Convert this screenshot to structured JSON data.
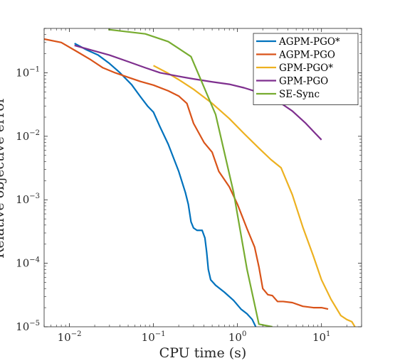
{
  "chart_data": {
    "type": "line",
    "xlabel": "CPU time (s)",
    "ylabel": "Relative objective error",
    "xscale": "log",
    "yscale": "log",
    "xlim": [
      0.005,
      30
    ],
    "ylim": [
      1e-05,
      0.5
    ],
    "xticks": [
      {
        "base": "10",
        "exp": "−2",
        "value": 0.01
      },
      {
        "base": "10",
        "exp": "−1",
        "value": 0.1
      },
      {
        "base": "10",
        "exp": "0",
        "value": 1
      },
      {
        "base": "10",
        "exp": "1",
        "value": 10
      }
    ],
    "yticks": [
      {
        "base": "10",
        "exp": "−5",
        "value": 1e-05
      },
      {
        "base": "10",
        "exp": "−4",
        "value": 0.0001
      },
      {
        "base": "10",
        "exp": "−3",
        "value": 0.001
      },
      {
        "base": "10",
        "exp": "−2",
        "value": 0.01
      },
      {
        "base": "10",
        "exp": "−1",
        "value": 0.1
      }
    ],
    "grid": false,
    "legend_position": "top-right",
    "series": [
      {
        "name": "AGPM-PGO*",
        "color": "#0072BD",
        "x": [
          0.0115,
          0.016,
          0.022,
          0.03,
          0.04,
          0.055,
          0.07,
          0.085,
          0.1,
          0.12,
          0.15,
          0.2,
          0.24,
          0.26,
          0.28,
          0.3,
          0.33,
          0.38,
          0.41,
          0.43,
          0.45,
          0.48,
          0.55,
          0.7,
          0.9,
          1.1,
          1.3,
          1.5,
          1.65
        ],
        "y": [
          0.29,
          0.23,
          0.19,
          0.14,
          0.1,
          0.065,
          0.042,
          0.03,
          0.024,
          0.014,
          0.0075,
          0.0028,
          0.0013,
          0.00085,
          0.00045,
          0.00036,
          0.00033,
          0.00033,
          0.00025,
          0.00015,
          8e-05,
          5.5e-05,
          4.5e-05,
          3.5e-05,
          2.6e-05,
          1.9e-05,
          1.6e-05,
          1.3e-05,
          1e-05
        ]
      },
      {
        "name": "AGPM-PGO",
        "color": "#D95319",
        "x": [
          0.005,
          0.008,
          0.012,
          0.018,
          0.025,
          0.035,
          0.05,
          0.07,
          0.1,
          0.15,
          0.2,
          0.25,
          0.3,
          0.4,
          0.5,
          0.6,
          0.8,
          1.0,
          1.3,
          1.6,
          1.8,
          2.0,
          2.3,
          2.6,
          3.0,
          3.5,
          4.5,
          6.0,
          8.0,
          10.0,
          12.0
        ],
        "y": [
          0.34,
          0.3,
          0.22,
          0.16,
          0.12,
          0.1,
          0.085,
          0.073,
          0.064,
          0.052,
          0.043,
          0.033,
          0.016,
          0.008,
          0.0056,
          0.0028,
          0.0016,
          0.00085,
          0.00035,
          0.00018,
          8.8e-05,
          4e-05,
          3.2e-05,
          3.1e-05,
          2.5e-05,
          2.5e-05,
          2.4e-05,
          2.1e-05,
          2e-05,
          2e-05,
          1.9e-05
        ]
      },
      {
        "name": "GPM-PGO*",
        "color": "#EDB120",
        "x": [
          0.1,
          0.15,
          0.2,
          0.3,
          0.5,
          0.8,
          1.2,
          1.8,
          2.5,
          3.3,
          4.5,
          6.0,
          8.0,
          10.0,
          13.0,
          17.0,
          20.0,
          23.0,
          25.0
        ],
        "y": [
          0.13,
          0.098,
          0.078,
          0.055,
          0.033,
          0.019,
          0.011,
          0.0065,
          0.0043,
          0.0032,
          0.0012,
          0.00037,
          0.00013,
          5.5e-05,
          2.7e-05,
          1.5e-05,
          1.3e-05,
          1.2e-05,
          1e-05
        ]
      },
      {
        "name": "GPM-PGO",
        "color": "#7E2F8E",
        "x": [
          0.0115,
          0.02,
          0.03,
          0.05,
          0.08,
          0.12,
          0.2,
          0.3,
          0.5,
          0.8,
          1.2,
          2.0,
          3.0,
          4.5,
          6.5,
          8.5,
          10.0
        ],
        "y": [
          0.27,
          0.22,
          0.19,
          0.15,
          0.12,
          0.1,
          0.088,
          0.08,
          0.072,
          0.066,
          0.058,
          0.047,
          0.036,
          0.025,
          0.016,
          0.011,
          0.0088
        ]
      },
      {
        "name": "SE-Sync",
        "color": "#77AC30",
        "x": [
          0.029,
          0.08,
          0.15,
          0.28,
          0.55,
          0.9,
          1.3,
          1.8,
          2.6
        ],
        "y": [
          0.48,
          0.41,
          0.31,
          0.18,
          0.022,
          0.0013,
          8e-05,
          1.1e-05,
          1e-05
        ]
      }
    ]
  }
}
